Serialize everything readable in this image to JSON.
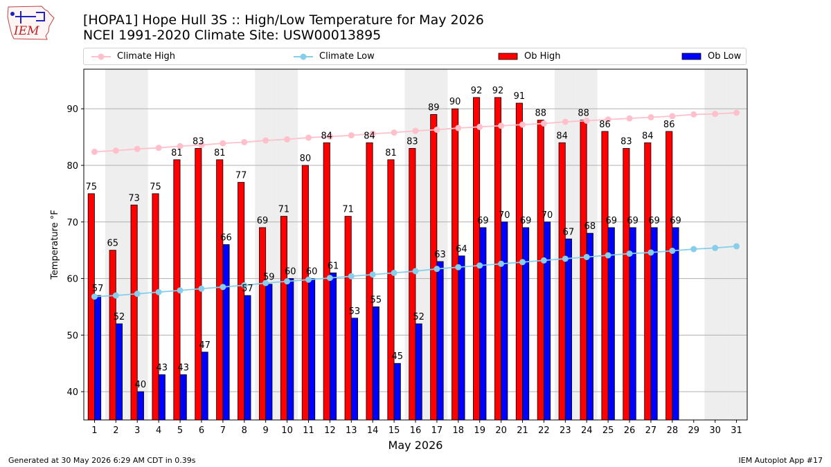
{
  "title": "[HOPA1] Hope Hull 3S :: High/Low Temperature for May 2026",
  "subtitle": "NCEI 1991-2020 Climate Site: USW00013895",
  "logo_text": "IEM",
  "footer": {
    "generated": "Generated at 30 May 2026 6:29 AM CDT in 0.39s",
    "app": "IEM Autoplot App #17"
  },
  "legend": {
    "climate_high": "Climate High",
    "climate_low": "Climate Low",
    "ob_high": "Ob High",
    "ob_low": "Ob Low"
  },
  "colors": {
    "climate_high": "#ffc0cb",
    "climate_low": "#87ceeb",
    "ob_high": "#ff0000",
    "ob_low": "#0000ff",
    "weekend_band": "#eeeeee",
    "grid": "#b0b0b0"
  },
  "chart_data": {
    "type": "bar",
    "xlabel": "May 2026",
    "ylabel": "Temperature °F",
    "ylim": [
      35,
      97
    ],
    "xlim": [
      0.5,
      31.5
    ],
    "yticks": [
      40,
      50,
      60,
      70,
      80,
      90
    ],
    "grid": "horizontal",
    "legend_position": "top",
    "x": [
      1,
      2,
      3,
      4,
      5,
      6,
      7,
      8,
      9,
      10,
      11,
      12,
      13,
      14,
      15,
      16,
      17,
      18,
      19,
      20,
      21,
      22,
      23,
      24,
      25,
      26,
      27,
      28,
      29,
      30,
      31
    ],
    "shaded_days": [
      2,
      3,
      9,
      10,
      16,
      17,
      23,
      24,
      30,
      31
    ],
    "series": [
      {
        "name": "Ob High",
        "kind": "bar",
        "values": [
          75,
          65,
          73,
          75,
          81,
          83,
          81,
          77,
          69,
          71,
          80,
          84,
          71,
          84,
          81,
          83,
          89,
          90,
          92,
          92,
          91,
          88,
          84,
          88,
          86,
          83,
          84,
          86,
          null,
          null,
          null
        ]
      },
      {
        "name": "Ob Low",
        "kind": "bar",
        "values": [
          57,
          52,
          40,
          43,
          43,
          47,
          66,
          57,
          59,
          60,
          60,
          61,
          53,
          55,
          45,
          52,
          63,
          64,
          69,
          70,
          69,
          70,
          67,
          68,
          69,
          69,
          69,
          69,
          null,
          null,
          null
        ]
      },
      {
        "name": "Climate High",
        "kind": "line",
        "values": [
          82.4,
          82.6,
          82.9,
          83.1,
          83.4,
          83.6,
          83.9,
          84.1,
          84.4,
          84.6,
          84.9,
          85.1,
          85.3,
          85.6,
          85.8,
          86.1,
          86.3,
          86.6,
          86.8,
          87.0,
          87.2,
          87.4,
          87.7,
          87.9,
          88.1,
          88.3,
          88.5,
          88.7,
          89.0,
          89.1,
          89.3
        ]
      },
      {
        "name": "Climate Low",
        "kind": "line",
        "values": [
          56.8,
          57.0,
          57.3,
          57.6,
          57.9,
          58.2,
          58.5,
          58.8,
          59.2,
          59.5,
          59.8,
          60.1,
          60.4,
          60.7,
          61.0,
          61.3,
          61.7,
          62.0,
          62.3,
          62.6,
          62.9,
          63.2,
          63.5,
          63.8,
          64.1,
          64.4,
          64.6,
          64.9,
          65.2,
          65.4,
          65.7
        ]
      }
    ]
  }
}
